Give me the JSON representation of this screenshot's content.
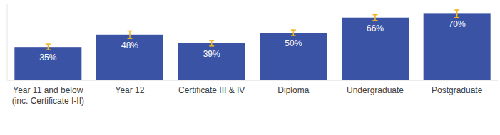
{
  "chart_data": {
    "type": "bar",
    "categories": [
      "Year 11 and below (inc. Certificate I-II)",
      "Year 12",
      "Certificate III & IV",
      "Diploma",
      "Undergraduate",
      "Postgraduate"
    ],
    "values": [
      35,
      48,
      39,
      50,
      66,
      70
    ],
    "value_labels": [
      "35%",
      "48%",
      "39%",
      "50%",
      "66%",
      "70%"
    ],
    "errors": [
      3,
      4,
      3,
      3,
      3,
      4
    ],
    "color": "#3a53a4",
    "error_color": "#f2b21c",
    "ylim": [
      0,
      80
    ],
    "grid": false,
    "data_labels": true,
    "tick_labels": "x"
  }
}
